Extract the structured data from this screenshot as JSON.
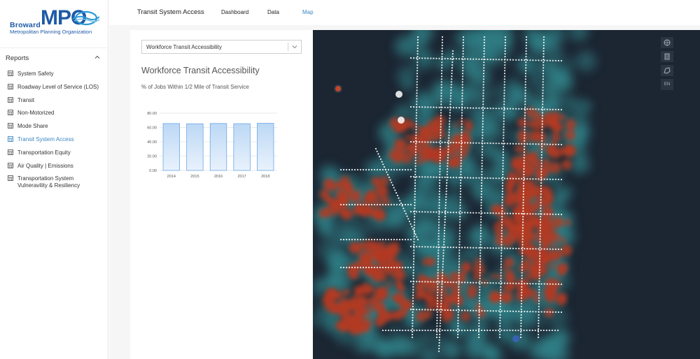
{
  "brand": {
    "word1": "Broward",
    "mark": "MPO",
    "subtitle": "Metropolitan Planning Organization"
  },
  "sidebar": {
    "section": "Reports",
    "items": [
      {
        "label": "System Safety",
        "active": false
      },
      {
        "label": "Roadway Level of Service (LOS)",
        "active": false
      },
      {
        "label": "Transit",
        "active": false
      },
      {
        "label": "Non-Motorized",
        "active": false
      },
      {
        "label": "Mode Share",
        "active": false
      },
      {
        "label": "Transit System Access",
        "active": true
      },
      {
        "label": "Transportation Equity",
        "active": false
      },
      {
        "label": "Air Quality | Emissions",
        "active": false
      },
      {
        "label": "Transportation System Vulneravility & Resiliency",
        "active": false
      }
    ]
  },
  "header": {
    "title": "Transit System Access",
    "tabs": [
      {
        "label": "Dashboard",
        "active": false
      },
      {
        "label": "Data",
        "active": false
      },
      {
        "label": "Map",
        "active": true
      }
    ]
  },
  "panel": {
    "select_value": "Workforce Transit Accessibility",
    "title": "Workforce Transit Accessibility",
    "subtitle": "% of Jobs Within 1/2 Mile of Transit Service"
  },
  "chart_data": {
    "type": "bar",
    "categories": [
      "2014",
      "2015",
      "2016",
      "2017",
      "2018"
    ],
    "values": [
      65.5,
      65.2,
      65.6,
      65.3,
      65.8
    ],
    "ylim": [
      0,
      80
    ],
    "yticks": [
      "0.00",
      "20.00",
      "40.00",
      "60.00",
      "80.00"
    ],
    "grid": true,
    "bar_color": "#bcd8f5",
    "bar_edge": "#6aa8e6"
  },
  "map": {
    "tools": [
      "layers-icon",
      "legend-icon",
      "draw-icon",
      "EN"
    ],
    "colors": {
      "base": "#1c2532",
      "low": "#2f7f86",
      "high": "#b33a22",
      "stops": "#ffffff"
    }
  },
  "colors": {
    "accent": "#3b87c4",
    "brand": "#1f5aa6"
  }
}
